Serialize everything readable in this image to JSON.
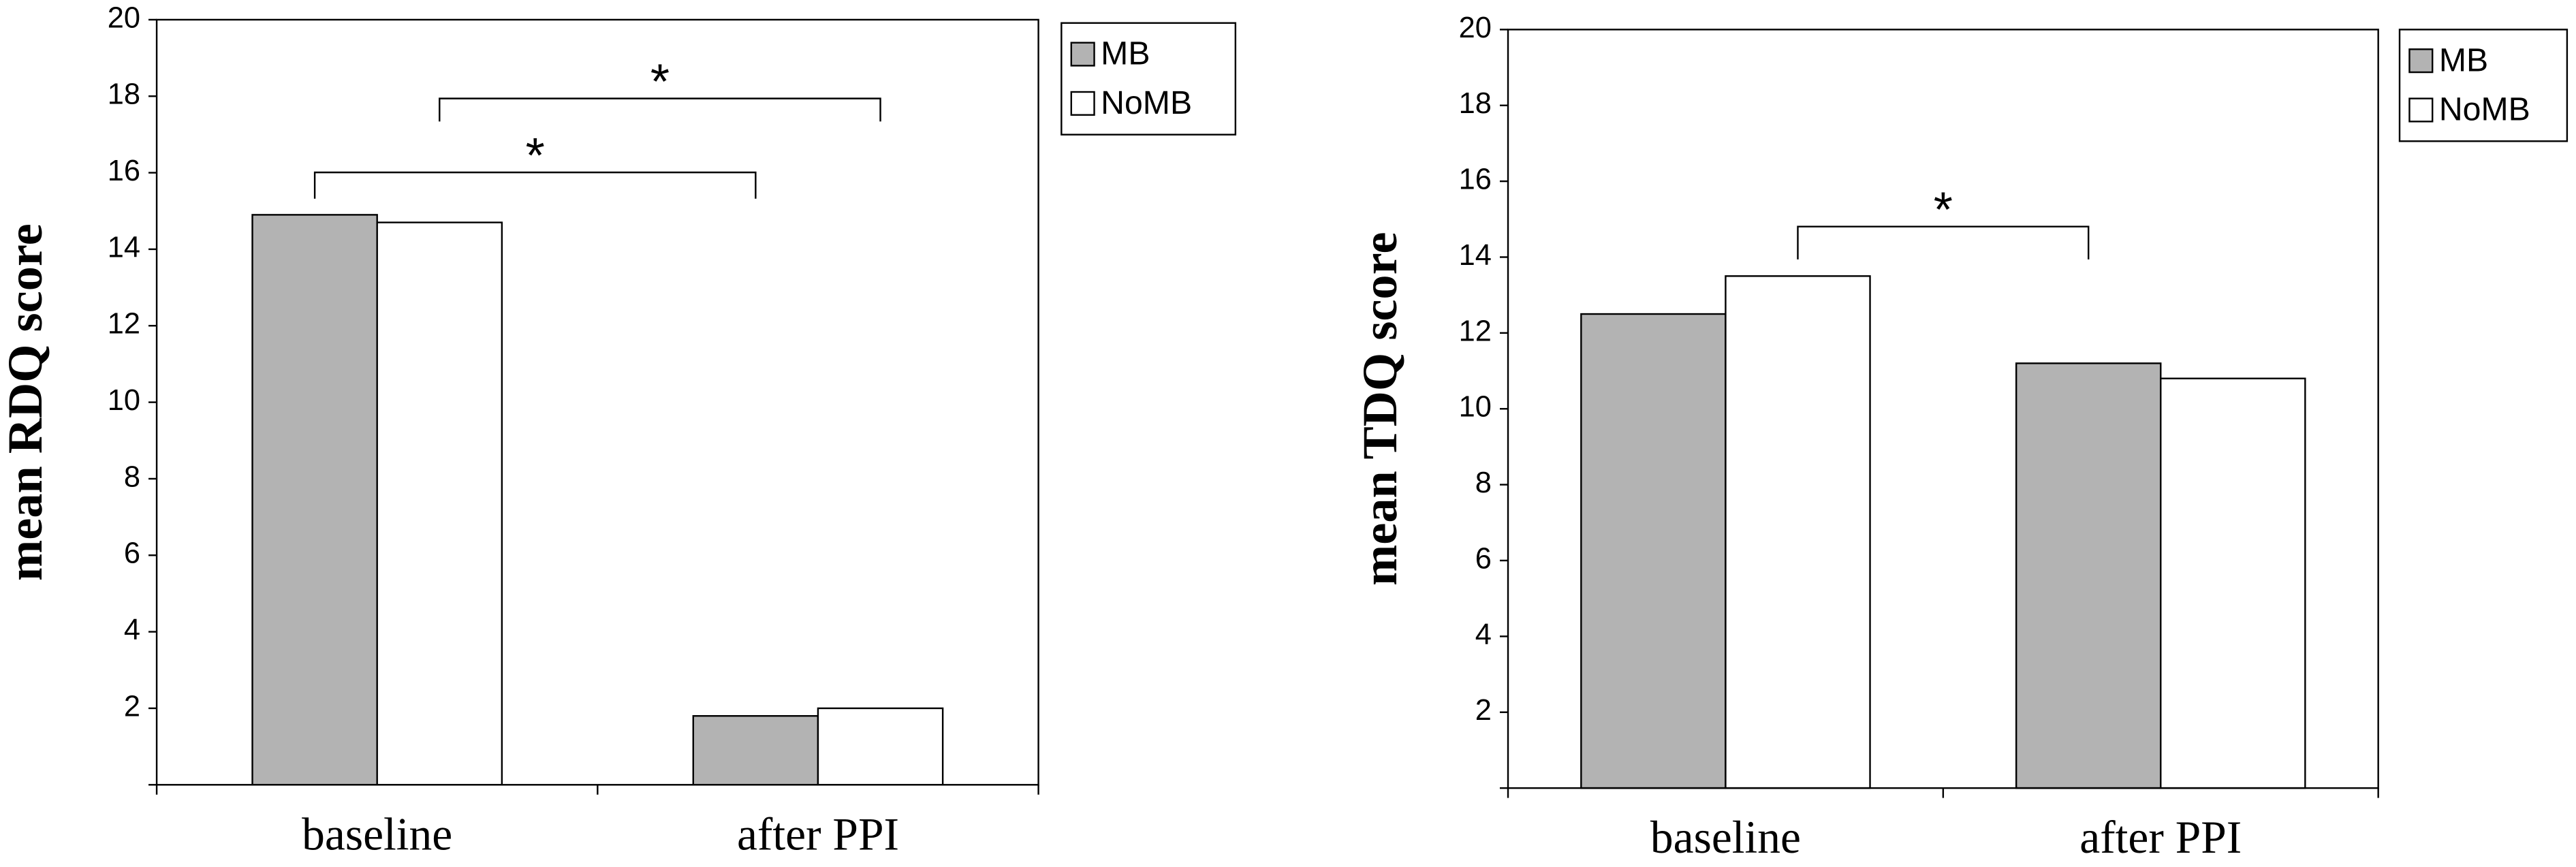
{
  "chart_data": [
    {
      "type": "bar",
      "ylabel": "mean RDQ score",
      "categories": [
        "baseline",
        "after PPI"
      ],
      "series": [
        {
          "name": "MB",
          "color": "#b3b3b3",
          "values": [
            14.9,
            1.8
          ]
        },
        {
          "name": "NoMB",
          "color": "#ffffff",
          "values": [
            14.7,
            2.0
          ]
        }
      ],
      "ylim": [
        0,
        20
      ],
      "yticks": [
        2,
        4,
        6,
        8,
        10,
        12,
        14,
        16,
        18,
        20
      ],
      "grid": false,
      "legend": "top-right",
      "annotations": [
        {
          "text": "*"
        },
        {
          "text": "*"
        }
      ]
    },
    {
      "type": "bar",
      "ylabel": "mean TDQ score",
      "categories": [
        "baseline",
        "after PPI"
      ],
      "series": [
        {
          "name": "MB",
          "color": "#b3b3b3",
          "values": [
            12.5,
            11.2
          ]
        },
        {
          "name": "NoMB",
          "color": "#ffffff",
          "values": [
            13.5,
            10.8
          ]
        }
      ],
      "ylim": [
        0,
        20
      ],
      "yticks": [
        2,
        4,
        6,
        8,
        10,
        12,
        14,
        16,
        18,
        20
      ],
      "grid": false,
      "legend": "top-right",
      "annotations": [
        {
          "text": "*"
        }
      ]
    }
  ]
}
